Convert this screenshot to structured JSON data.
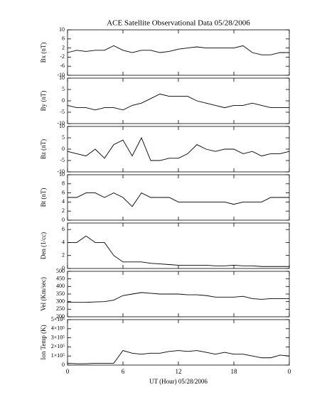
{
  "title": "ACE Satellite Observational Data   05/28/2006",
  "x_axis": {
    "label": "UT (Hour)   05/28/2006",
    "xlim": [
      0,
      24
    ],
    "xticks": [
      0,
      6,
      12,
      18,
      {
        "value": 24,
        "label": "0"
      }
    ]
  },
  "chart_data": [
    {
      "type": "line",
      "ylabel": "Bx (nT)",
      "color": "#000000",
      "ylim": [
        -10,
        10
      ],
      "yticks": [
        -10,
        -6,
        -2,
        2,
        6,
        10
      ],
      "x": [
        0,
        1,
        2,
        3,
        4,
        5,
        6,
        7,
        8,
        9,
        10,
        11,
        12,
        13,
        14,
        15,
        16,
        17,
        18,
        19,
        20,
        21,
        22,
        23,
        24
      ],
      "values": [
        0,
        1,
        0.5,
        1,
        1,
        3,
        1,
        0,
        1,
        1,
        0,
        0.5,
        1.5,
        2,
        2.5,
        2,
        2,
        2,
        2,
        3,
        0,
        -1,
        -1,
        0,
        0
      ]
    },
    {
      "type": "line",
      "ylabel": "By (nT)",
      "color": "#000000",
      "ylim": [
        -10,
        10
      ],
      "yticks": [
        -10,
        -5,
        0,
        5,
        10
      ],
      "x": [
        0,
        1,
        2,
        3,
        4,
        5,
        6,
        7,
        8,
        9,
        10,
        11,
        12,
        13,
        14,
        15,
        16,
        17,
        18,
        19,
        20,
        21,
        22,
        23,
        24
      ],
      "values": [
        -2,
        -3,
        -3,
        -4,
        -3,
        -3,
        -4,
        -2,
        -1,
        1,
        3,
        2,
        2,
        2,
        0,
        -1,
        -2,
        -3,
        -2,
        -2,
        -1,
        -2,
        -3,
        -3,
        -3
      ]
    },
    {
      "type": "line",
      "ylabel": "Bz (nT)",
      "color": "#000000",
      "ylim": [
        -10,
        10
      ],
      "yticks": [
        -10,
        -5,
        0,
        5,
        10
      ],
      "x": [
        0,
        1,
        2,
        3,
        4,
        5,
        6,
        7,
        8,
        9,
        10,
        11,
        12,
        13,
        14,
        15,
        16,
        17,
        18,
        19,
        20,
        21,
        22,
        23,
        24
      ],
      "values": [
        -1,
        -2,
        -3,
        0,
        -4,
        2,
        4,
        -3,
        5,
        -5,
        -5,
        -4,
        -4,
        -2,
        2,
        0,
        -1,
        0,
        0,
        -2,
        -1,
        -3,
        -2,
        -2,
        -1
      ]
    },
    {
      "type": "line",
      "ylabel": "Bt (nT)",
      "color": "#000000",
      "ylim": [
        0,
        10
      ],
      "yticks": [
        0,
        2,
        4,
        6,
        8,
        10
      ],
      "x": [
        0,
        1,
        2,
        3,
        4,
        5,
        6,
        7,
        8,
        9,
        10,
        11,
        12,
        13,
        14,
        15,
        16,
        17,
        18,
        19,
        20,
        21,
        22,
        23,
        24
      ],
      "values": [
        5,
        5,
        6,
        6,
        5,
        6,
        5,
        3,
        6,
        5,
        5,
        5,
        4,
        4,
        4,
        4,
        4,
        4,
        3.5,
        4,
        4,
        4,
        5,
        5,
        5
      ]
    },
    {
      "type": "line",
      "ylabel": "Den (1/cc)",
      "color": "#000000",
      "ylim": [
        0,
        7
      ],
      "yticks": [
        0,
        2,
        4,
        6
      ],
      "x": [
        0,
        1,
        2,
        3,
        4,
        5,
        6,
        7,
        8,
        9,
        10,
        11,
        12,
        13,
        14,
        15,
        16,
        17,
        18,
        19,
        20,
        21,
        22,
        23,
        24
      ],
      "values": [
        4,
        4,
        5,
        4,
        4,
        2,
        1,
        1,
        1,
        0.8,
        0.7,
        0.6,
        0.5,
        0.5,
        0.5,
        0.5,
        0.4,
        0.4,
        0.5,
        0.4,
        0.4,
        0.3,
        0.3,
        0.3,
        0.3
      ]
    },
    {
      "type": "line",
      "ylabel": "Vel (Km/sec)",
      "color": "#000000",
      "ylim": [
        200,
        500
      ],
      "yticks": [
        200,
        250,
        300,
        350,
        400,
        450,
        500
      ],
      "x": [
        0,
        1,
        2,
        3,
        4,
        5,
        6,
        7,
        8,
        9,
        10,
        11,
        12,
        13,
        14,
        15,
        16,
        17,
        18,
        19,
        20,
        21,
        22,
        23,
        24
      ],
      "values": [
        295,
        295,
        295,
        298,
        300,
        310,
        340,
        350,
        360,
        355,
        350,
        350,
        350,
        345,
        345,
        340,
        330,
        330,
        330,
        335,
        320,
        315,
        320,
        320,
        320
      ]
    },
    {
      "type": "line",
      "ylabel": "Ion Temp (K)",
      "color": "#000000",
      "ylim": [
        0,
        500000
      ],
      "yticks": [
        0,
        {
          "value": 100000,
          "label": "1×10⁵"
        },
        {
          "value": 200000,
          "label": "2×10⁵"
        },
        {
          "value": 300000,
          "label": "3×10⁵"
        },
        {
          "value": 400000,
          "label": "4×10⁵"
        },
        {
          "value": 500000,
          "label": "5×10⁵"
        }
      ],
      "x": [
        0,
        1,
        2,
        3,
        4,
        5,
        6,
        7,
        8,
        9,
        10,
        11,
        12,
        13,
        14,
        15,
        16,
        17,
        18,
        19,
        20,
        21,
        22,
        23,
        24
      ],
      "values": [
        20000,
        15000,
        15000,
        20000,
        20000,
        20000,
        160000,
        130000,
        120000,
        130000,
        130000,
        150000,
        160000,
        150000,
        160000,
        140000,
        120000,
        140000,
        120000,
        120000,
        100000,
        80000,
        80000,
        110000,
        100000
      ]
    }
  ]
}
